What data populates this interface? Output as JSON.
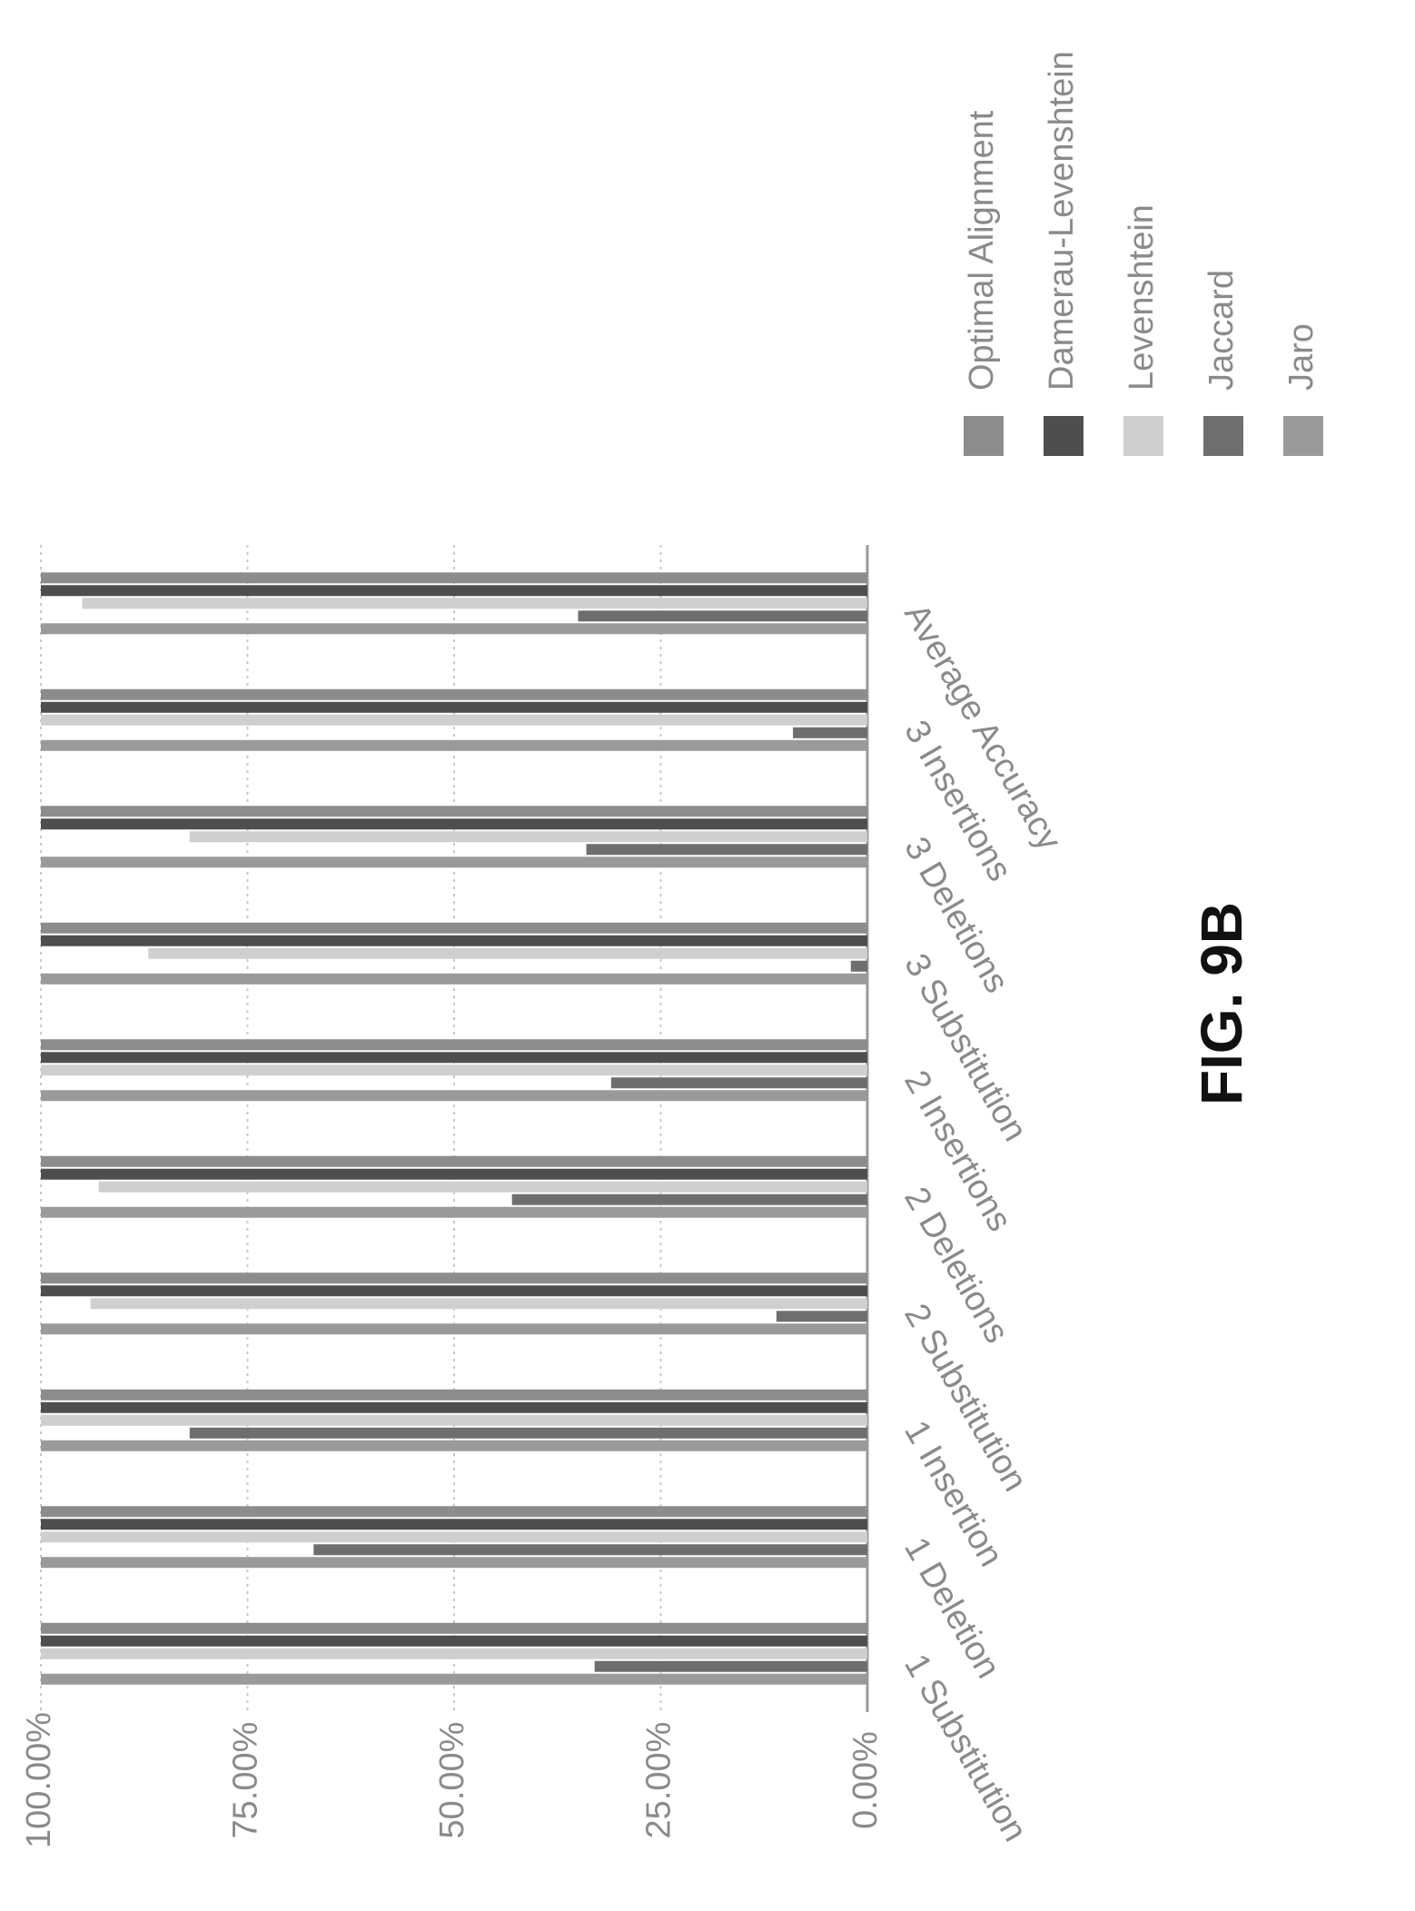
{
  "figure_label": "FIG. 9B",
  "chart_data": {
    "type": "bar",
    "orientation": "horizontal",
    "categories": [
      "1 Substitution",
      "1 Deletion",
      "1 Insertion",
      "2 Substitution",
      "2 Deletions",
      "2 Insertions",
      "3 Substitution",
      "3 Deletions",
      "3 Insertions",
      "Average Accuracy"
    ],
    "series": [
      {
        "name": "Jaro",
        "color": "#9a9a9a",
        "values": [
          100,
          100,
          100,
          100,
          100,
          100,
          100,
          100,
          100,
          100
        ]
      },
      {
        "name": "Jaccard",
        "color": "#6e6e6e",
        "values": [
          33,
          67,
          82,
          11,
          43,
          31,
          2,
          34,
          9,
          35
        ]
      },
      {
        "name": "Levenshtein",
        "color": "#cfcfcf",
        "values": [
          100,
          100,
          100,
          94,
          93,
          100,
          87,
          82,
          100,
          95
        ]
      },
      {
        "name": "Damerau-Levenshtein",
        "color": "#4e4e4e",
        "values": [
          100,
          100,
          100,
          100,
          100,
          100,
          100,
          100,
          100,
          100
        ]
      },
      {
        "name": "Optimal Alignment",
        "color": "#8c8c8c",
        "values": [
          100,
          100,
          100,
          100,
          100,
          100,
          100,
          100,
          100,
          100
        ]
      }
    ],
    "value_axis": {
      "ticks": [
        "0.00%",
        "25.00%",
        "50.00%",
        "75.00%",
        "100.00%"
      ],
      "range": [
        0,
        100
      ]
    },
    "grid": true,
    "legend_position": "top-right"
  }
}
